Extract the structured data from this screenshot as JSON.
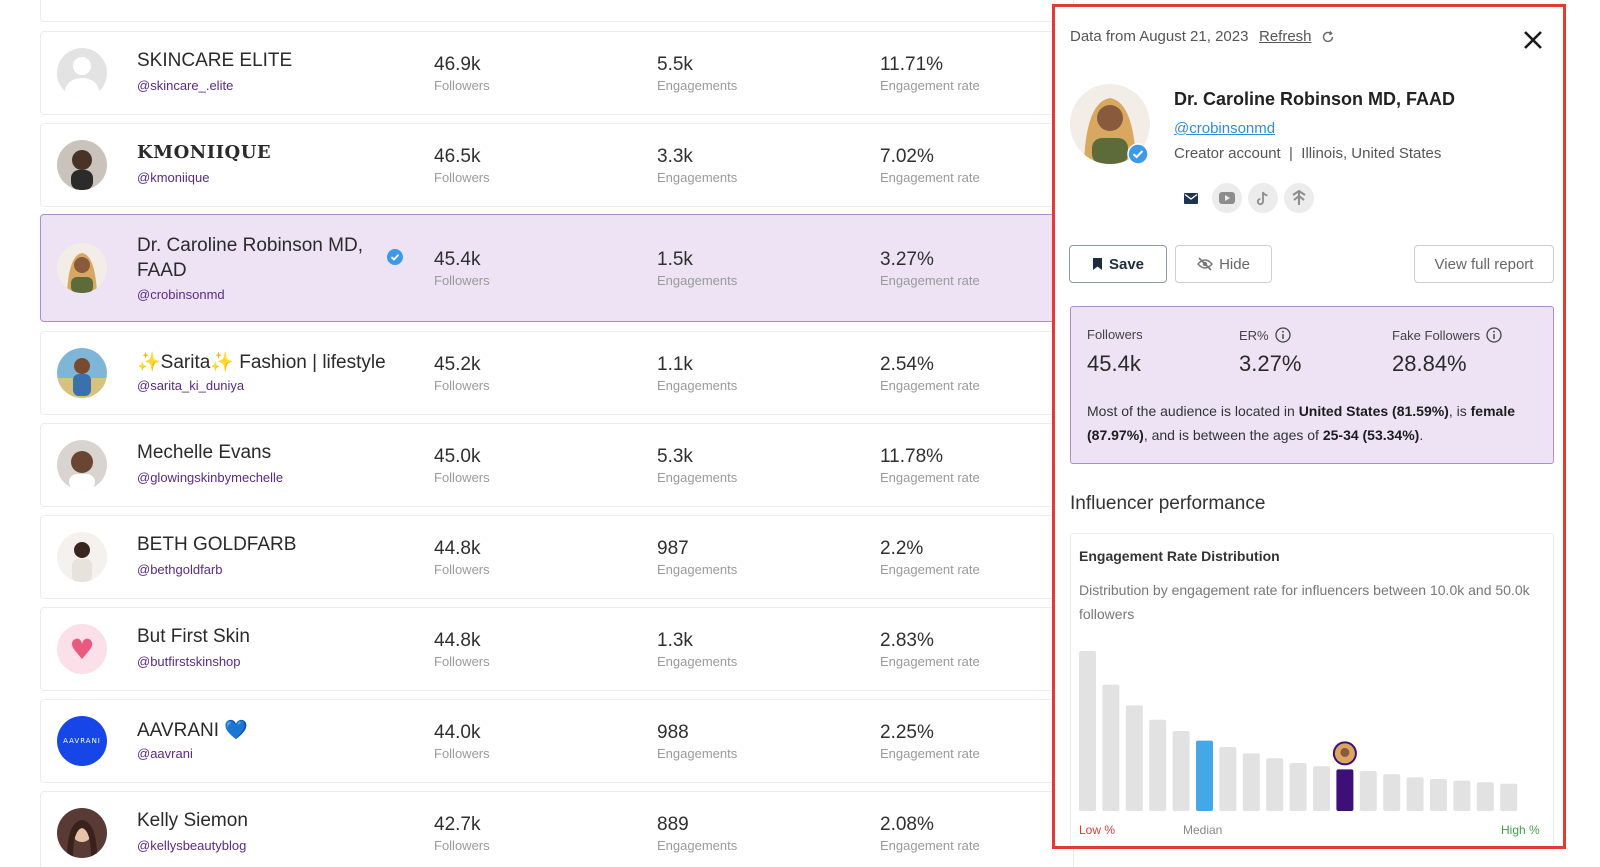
{
  "list": {
    "rows": [
      {
        "name": "SKINCARE ELITE",
        "handle": "@skincare_.elite",
        "followers": "46.9k",
        "engagements": "5.5k",
        "rate": "11.71%"
      },
      {
        "name": "KMONIIQUE",
        "handle": "@kmoniique",
        "followers": "46.5k",
        "engagements": "3.3k",
        "rate": "7.02%"
      },
      {
        "name": "Dr. Caroline Robinson MD, FAAD",
        "handle": "@crobinsonmd",
        "followers": "45.4k",
        "engagements": "1.5k",
        "rate": "3.27%",
        "verified": true,
        "selected": true
      },
      {
        "name": "✨Sarita✨ Fashion | lifestyle",
        "handle": "@sarita_ki_duniya",
        "followers": "45.2k",
        "engagements": "1.1k",
        "rate": "2.54%"
      },
      {
        "name": "Mechelle Evans",
        "handle": "@glowingskinbymechelle",
        "followers": "45.0k",
        "engagements": "5.3k",
        "rate": "11.78%"
      },
      {
        "name": "BETH GOLDFARB",
        "handle": "@bethgoldfarb",
        "followers": "44.8k",
        "engagements": "987",
        "rate": "2.2%"
      },
      {
        "name": "But First Skin",
        "handle": "@butfirstskinshop",
        "followers": "44.8k",
        "engagements": "1.3k",
        "rate": "2.83%"
      },
      {
        "name": "AAVRANI 💙",
        "handle": "@aavrani",
        "followers": "44.0k",
        "engagements": "988",
        "rate": "2.25%",
        "avatar_text": "AAVRANI"
      },
      {
        "name": "Kelly Siemon",
        "handle": "@kellysbeautyblog",
        "followers": "42.7k",
        "engagements": "889",
        "rate": "2.08%"
      }
    ],
    "labels": {
      "followers": "Followers",
      "engagements": "Engagements",
      "rate": "Engagement rate"
    }
  },
  "panel": {
    "data_date": "Data from August 21, 2023",
    "refresh": "Refresh",
    "name": "Dr. Caroline Robinson MD, FAAD",
    "handle": "@crobinsonmd",
    "account": "Creator account  |  Illinois, United States",
    "social_icons": [
      "mail-icon",
      "youtube-icon",
      "tiktok-icon",
      "linktree-icon"
    ],
    "buttons": {
      "save": "Save",
      "hide": "Hide",
      "report": "View full report"
    },
    "stats": {
      "followers_label": "Followers",
      "followers_value": "45.4k",
      "er_label": "ER%",
      "er_value": "3.27%",
      "fake_label": "Fake Followers",
      "fake_value": "28.84%"
    },
    "summary": {
      "p1": "Most of the audience is located in ",
      "b1": "United States (81.59%)",
      "p2": ", is ",
      "b2": "female (87.97%)",
      "p3": ", and is between the ages of ",
      "b3": "25-34 (53.34%)",
      "p4": "."
    },
    "performance_title": "Influencer performance",
    "card": {
      "title": "Engagement Rate Distribution",
      "subtitle": "Distribution by engagement rate for influencers between 10.0k and 50.0k followers",
      "low": "Low %",
      "median": "Median",
      "high": "High %"
    },
    "colors": {
      "accent": "#3f0f78",
      "median": "#44a8e8",
      "bar": "#e2e2e2",
      "border": "#e53935"
    }
  },
  "chart_data": {
    "type": "bar",
    "title": "Engagement Rate Distribution",
    "values": [
      100,
      79,
      66,
      57,
      50,
      44,
      40,
      36,
      33,
      30,
      28,
      26,
      25,
      23,
      21,
      20,
      19,
      18,
      17
    ],
    "median_index": 5,
    "highlight_index": 11,
    "xlabel_left": "Low %",
    "xlabel_center": "Median",
    "xlabel_right": "High %"
  }
}
